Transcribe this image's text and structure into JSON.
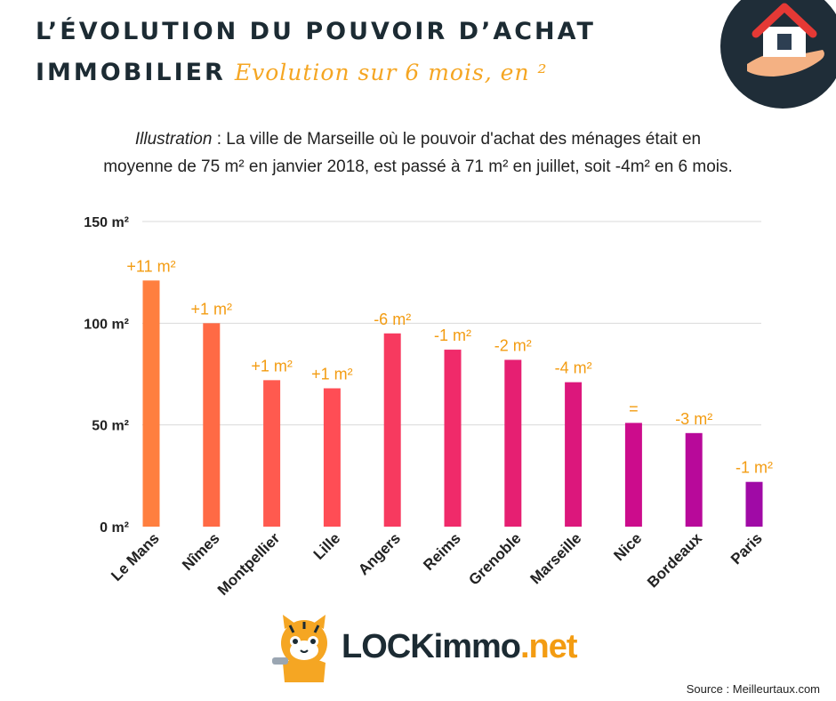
{
  "header": {
    "title_line1": "L’ÉVOLUTION DU POUVOIR D’ACHAT",
    "title_line2": "IMMOBILIER",
    "subtitle": "Evolution sur 6 mois, en ²"
  },
  "illustration": {
    "lead": "Illustration",
    "line1": " : La ville de Marseille où le pouvoir d'achat des ménages était en",
    "line2": "moyenne de 75 m² en janvier 2018, est passé à 71 m² en juillet, soit -4m² en 6 mois."
  },
  "brand": {
    "name_main": "LOCKimmo",
    "name_suffix": ".net"
  },
  "source": "Source : Meilleurtaux.com",
  "icons": {
    "header_logo": "house-in-hand-icon",
    "mascot": "cat-mascot-icon"
  },
  "colors": {
    "start": "#ff7f3f",
    "end": "#a00aa6",
    "label": "#f39c12"
  },
  "chart_data": {
    "type": "bar",
    "categories": [
      "Le Mans",
      "Nîmes",
      "Montpellier",
      "Lille",
      "Angers",
      "Reims",
      "Grenoble",
      "Marseille",
      "Nice",
      "Bordeaux",
      "Paris"
    ],
    "values": [
      121,
      100,
      72,
      68,
      95,
      87,
      82,
      71,
      51,
      46,
      22
    ],
    "data_labels": [
      "+11 m²",
      "+1 m²",
      "+1 m²",
      "+1 m²",
      "-6 m²",
      "-1 m²",
      "-2 m²",
      "-4 m²",
      "=",
      "-3 m²",
      "-1 m²"
    ],
    "bar_colors": [
      "#ff7f3f",
      "#ff6a45",
      "#ff5a4f",
      "#ff4d55",
      "#f73a5f",
      "#f02a6a",
      "#e61f72",
      "#dc177c",
      "#cc0c8c",
      "#b8099a",
      "#a00aa6"
    ],
    "yticks": [
      0,
      50,
      100,
      150
    ],
    "ytick_labels": [
      "0 m²",
      "50 m²",
      "100 m²",
      "150 m²"
    ],
    "ylim": [
      0,
      150
    ],
    "grid": true
  }
}
